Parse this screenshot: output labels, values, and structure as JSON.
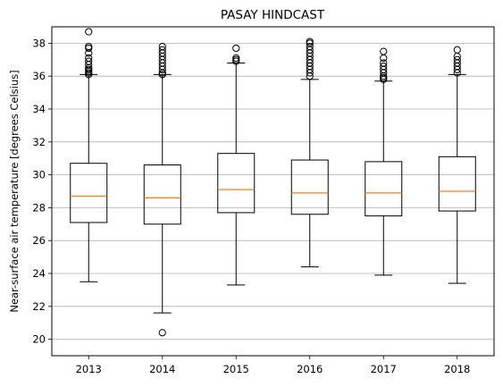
{
  "chart_data": {
    "type": "box",
    "title": "PASAY HINDCAST",
    "xlabel": "",
    "ylabel": "Near-surface air temperature [degrees Celsius]",
    "ylim": [
      19.0,
      39.0
    ],
    "yticks": [
      20,
      22,
      24,
      26,
      28,
      30,
      32,
      34,
      36,
      38
    ],
    "grid": "y-major",
    "categories": [
      "2013",
      "2014",
      "2015",
      "2016",
      "2017",
      "2018"
    ],
    "boxes": [
      {
        "category": "2013",
        "whisker_low": 23.5,
        "q1": 27.1,
        "median": 28.7,
        "q3": 30.7,
        "whisker_high": 36.1,
        "outliers": [
          36.1,
          36.2,
          36.3,
          36.4,
          36.5,
          36.7,
          36.9,
          37.1,
          37.4,
          37.7,
          37.8,
          38.7
        ]
      },
      {
        "category": "2014",
        "whisker_low": 21.6,
        "q1": 27.0,
        "median": 28.6,
        "q3": 30.6,
        "whisker_high": 36.1,
        "outliers": [
          20.4,
          36.1,
          36.2,
          36.4,
          36.6,
          36.8,
          37.0,
          37.2,
          37.4,
          37.6,
          37.8
        ]
      },
      {
        "category": "2015",
        "whisker_low": 23.3,
        "q1": 27.7,
        "median": 29.1,
        "q3": 31.3,
        "whisker_high": 36.8,
        "outliers": [
          36.9,
          37.0,
          37.1,
          37.7
        ]
      },
      {
        "category": "2016",
        "whisker_low": 24.4,
        "q1": 27.6,
        "median": 28.9,
        "q3": 30.9,
        "whisker_high": 35.8,
        "outliers": [
          36.0,
          36.2,
          36.4,
          36.6,
          36.8,
          37.0,
          37.2,
          37.4,
          37.6,
          37.8,
          38.0,
          38.1
        ]
      },
      {
        "category": "2017",
        "whisker_low": 23.9,
        "q1": 27.5,
        "median": 28.9,
        "q3": 30.8,
        "whisker_high": 35.7,
        "outliers": [
          35.8,
          35.9,
          36.0,
          36.2,
          36.4,
          36.6,
          36.8,
          37.1,
          37.5
        ]
      },
      {
        "category": "2018",
        "whisker_low": 23.4,
        "q1": 27.8,
        "median": 29.0,
        "q3": 31.1,
        "whisker_high": 36.1,
        "outliers": [
          36.2,
          36.4,
          36.6,
          36.8,
          37.0,
          37.2,
          37.6
        ]
      }
    ],
    "colors": {
      "median": "#ff7f0e",
      "box": "#000000",
      "grid": "#b0b0b0"
    }
  }
}
